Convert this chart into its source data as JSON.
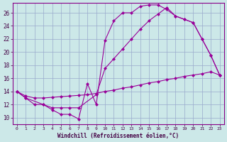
{
  "xlabel": "Windchill (Refroidissement éolien,°C)",
  "bg_color": "#cce8e8",
  "grid_color": "#99aacc",
  "line_color": "#990099",
  "xlim": [
    -0.5,
    23.5
  ],
  "ylim": [
    9.0,
    27.5
  ],
  "xticks": [
    0,
    1,
    2,
    3,
    4,
    5,
    6,
    7,
    8,
    9,
    10,
    11,
    12,
    13,
    14,
    15,
    16,
    17,
    18,
    19,
    20,
    21,
    22,
    23
  ],
  "yticks": [
    10,
    12,
    14,
    16,
    18,
    20,
    22,
    24,
    26
  ],
  "curve1_x": [
    0,
    1,
    2,
    3,
    4,
    5,
    6,
    7,
    8,
    9,
    10,
    11,
    12,
    13,
    14,
    15,
    16,
    17,
    18,
    19,
    20,
    21,
    22,
    23
  ],
  "curve1_y": [
    14.0,
    13.0,
    12.0,
    12.0,
    11.2,
    10.5,
    10.5,
    9.8,
    15.2,
    12.0,
    21.8,
    24.8,
    26.0,
    26.0,
    27.0,
    27.2,
    27.2,
    26.5,
    25.5,
    25.0,
    24.5,
    22.0,
    19.5,
    16.5
  ],
  "curve2_x": [
    0,
    1,
    3,
    4,
    5,
    6,
    7,
    9,
    10,
    11,
    12,
    13,
    14,
    15,
    16,
    17,
    18,
    19,
    20,
    21,
    22,
    23
  ],
  "curve2_y": [
    14.0,
    13.0,
    12.0,
    11.5,
    11.5,
    11.5,
    11.5,
    13.5,
    17.5,
    19.0,
    20.5,
    22.0,
    23.5,
    24.8,
    25.8,
    26.8,
    25.5,
    25.0,
    24.5,
    22.0,
    19.5,
    16.5
  ],
  "curve3_x": [
    0,
    1,
    2,
    3,
    4,
    5,
    6,
    7,
    8,
    9,
    10,
    11,
    12,
    13,
    14,
    15,
    16,
    17,
    18,
    19,
    20,
    21,
    22,
    23
  ],
  "curve3_y": [
    14.0,
    13.3,
    13.0,
    13.0,
    13.1,
    13.2,
    13.3,
    13.4,
    13.5,
    13.7,
    14.0,
    14.2,
    14.5,
    14.7,
    15.0,
    15.3,
    15.5,
    15.8,
    16.0,
    16.3,
    16.5,
    16.7,
    17.0,
    16.5
  ],
  "marker": "D",
  "marker_size": 2.5,
  "line_width": 0.8
}
